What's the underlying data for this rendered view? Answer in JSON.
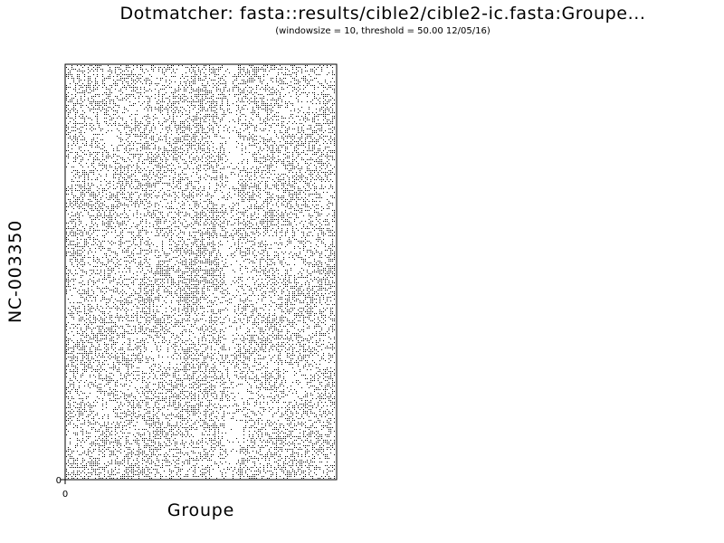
{
  "chart_data": {
    "type": "scatter",
    "title": "Dotmatcher: fasta::results/cible2/cible2-ic.fasta:Groupe...",
    "subtitle": "(windowsize = 10, threshold = 50.00  12/05/16)",
    "xlabel": "Groupe",
    "ylabel": "NC-003350",
    "x_tick_labels": [
      "0"
    ],
    "y_tick_labels": [
      "0"
    ],
    "grid": false,
    "dot_color": "#000000",
    "background": "#ffffff"
  }
}
